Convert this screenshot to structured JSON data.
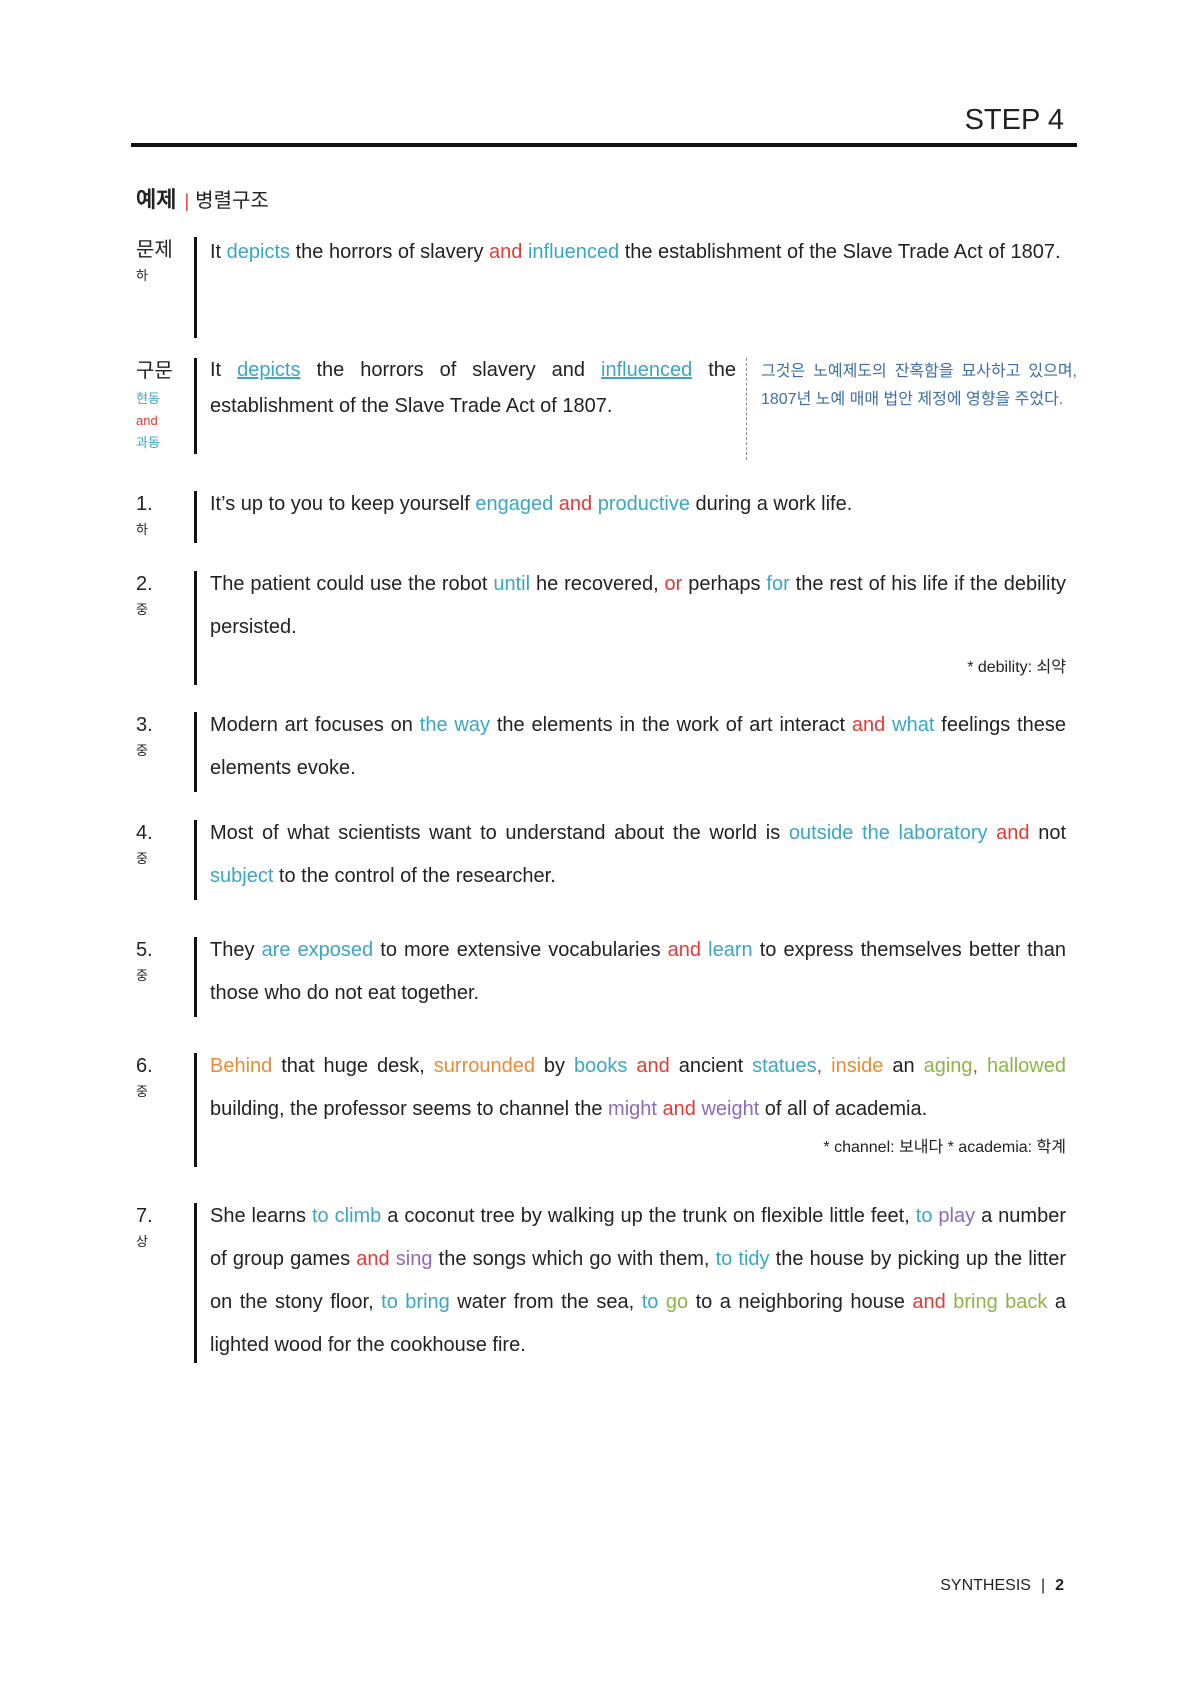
{
  "header": {
    "step": "STEP 4"
  },
  "section": {
    "title": "예제",
    "divider": "|",
    "subtitle": "병렬구조"
  },
  "problem": {
    "label": "문제",
    "level": "하",
    "text": {
      "t1": "It ",
      "w1": "depicts",
      "t2": " the horrors of slavery ",
      "w2": "and",
      "t3": " ",
      "w3": "influenced",
      "t4": " the establishment of the Slave Trade Act of 1807."
    }
  },
  "syntax": {
    "label": "구문",
    "tag1": "현동",
    "tag2": "and",
    "tag3": "과동",
    "text": {
      "t1": "It ",
      "w1": "depicts",
      "t2": " the horrors of slavery and ",
      "w2": "influenced",
      "t3": " the establishment of the Slave Trade Act of 1807."
    },
    "translation": "그것은 노예제도의 잔혹함을 묘사하고 있으며, 1807년 노예 매매 법안 제정에 영향을 주었다."
  },
  "items": [
    {
      "num": "1.",
      "level": "하",
      "s": [
        "It’s up to you to keep yourself ",
        "engaged",
        " ",
        "and",
        " ",
        "productive",
        " during a work life."
      ]
    },
    {
      "num": "2.",
      "level": "중",
      "s": [
        "The patient could use the robot ",
        "until",
        " he recovered, ",
        "or",
        " perhaps ",
        "for",
        " the rest of his life if the debility persisted."
      ],
      "note": "* debility: 쇠약"
    },
    {
      "num": "3.",
      "level": "중",
      "s": [
        "Modern art focuses on ",
        "the way",
        " the elements in the work of art interact ",
        "and",
        " ",
        "what",
        " feelings these elements evoke."
      ]
    },
    {
      "num": "4.",
      "level": "중",
      "s": [
        "Most of what scientists want to understand about the world is ",
        "outside the laboratory",
        " ",
        "and",
        " not ",
        "subject",
        " to the control of the researcher."
      ]
    },
    {
      "num": "5.",
      "level": "중",
      "s": [
        "They ",
        "are exposed",
        " to more extensive vocabularies ",
        "and",
        " ",
        "learn",
        " to express themselves better than those who do not eat together."
      ]
    },
    {
      "num": "6.",
      "level": "중",
      "s": [
        "Behind",
        " that huge desk, ",
        "surrounded",
        " by ",
        "books",
        " ",
        "and",
        " ancient ",
        "statues",
        ", ",
        "inside",
        " an ",
        "aging",
        ", ",
        "hallowed",
        " building, the professor seems to channel the ",
        "might",
        " ",
        "and",
        " ",
        "weight",
        " of all of academia."
      ],
      "note": "* channel: 보내다 * academia: 학계"
    },
    {
      "num": "7.",
      "level": "상",
      "s": [
        "She learns ",
        "to climb",
        " a coconut tree by walking up the trunk on flexible little feet, ",
        "to",
        " ",
        "play",
        " a number of group games ",
        "and",
        " ",
        "sing",
        " the songs which go with them, ",
        "to tidy",
        " the house by picking up the litter on the stony floor, ",
        "to bring",
        " water from the sea, ",
        "to",
        " ",
        "go",
        " to a neighboring house ",
        "and",
        " ",
        "bring back",
        " a lighted wood for the cookhouse fire."
      ]
    }
  ],
  "footer": {
    "label": "SYNTHESIS",
    "sep": "|",
    "page": "2"
  }
}
